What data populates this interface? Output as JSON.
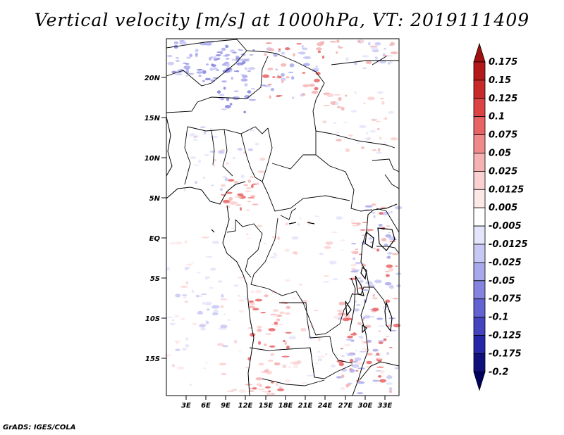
{
  "title": "Vertical velocity [m/s] at 1000hPa, VT: 2019111409",
  "credit": "GrADS: IGES/COLA",
  "map": {
    "lat_labels": [
      "20N",
      "15N",
      "10N",
      "5N",
      "EQ",
      "5S",
      "10S",
      "15S"
    ],
    "lon_labels": [
      "3E",
      "6E",
      "9E",
      "12E",
      "15E",
      "18E",
      "21E",
      "24E",
      "27E",
      "30E",
      "33E"
    ]
  },
  "colorbar": {
    "levels": [
      "0.175",
      "0.15",
      "0.125",
      "0.1",
      "0.075",
      "0.05",
      "0.025",
      "0.0125",
      "0.005",
      "-0.005",
      "-0.0125",
      "-0.025",
      "-0.05",
      "-0.075",
      "-0.1",
      "-0.125",
      "-0.175",
      "-0.2"
    ],
    "colors": [
      "#a01010",
      "#b31919",
      "#c82a2a",
      "#dc4444",
      "#e86464",
      "#f08a8a",
      "#f6b2b2",
      "#fad0d0",
      "#fde8e8",
      "#ffffff",
      "#e4e4fb",
      "#c8c8f4",
      "#a8a8ec",
      "#8484e0",
      "#6262d2",
      "#4444c0",
      "#2626a8",
      "#10107c",
      "#000060"
    ]
  }
}
